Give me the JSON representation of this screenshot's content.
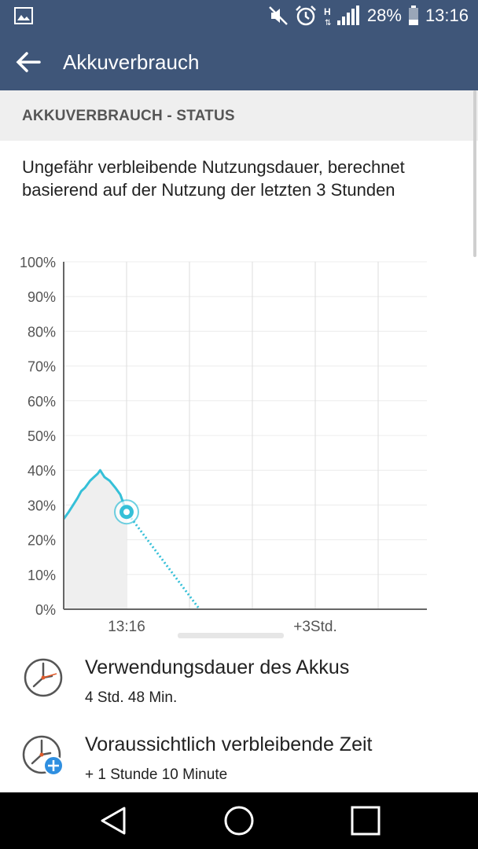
{
  "status_bar": {
    "battery_percent": "28%",
    "time": "13:16"
  },
  "app_bar": {
    "title": "Akkuverbrauch"
  },
  "section": {
    "header": "AKKUVERBRAUCH - STATUS"
  },
  "description": "Ungefähr verbleibende Nutzungsdauer, berechnet basierend auf der Nutzung der letzten 3 Stunden",
  "chart_data": {
    "type": "line",
    "y_ticks": [
      "100%",
      "90%",
      "80%",
      "70%",
      "60%",
      "50%",
      "40%",
      "30%",
      "20%",
      "10%",
      "0%"
    ],
    "x_labels": [
      "13:16",
      "+3Std."
    ],
    "ylim": [
      0,
      100
    ],
    "grid": true,
    "series": [
      {
        "x": [
          -1.0,
          -0.92,
          -0.85,
          -0.78,
          -0.72,
          -0.66,
          -0.58,
          -0.52,
          -0.46,
          -0.42,
          -0.35,
          -0.27,
          -0.18,
          -0.1,
          -0.04,
          0.0
        ],
        "values": [
          26,
          28,
          30,
          32,
          34,
          35,
          37,
          38,
          39,
          40,
          38,
          37,
          35,
          33,
          30,
          28
        ]
      }
    ],
    "projection": {
      "x": [
        0.0,
        1.16
      ],
      "values": [
        28,
        0
      ]
    },
    "current_point": {
      "x": 0.0,
      "value": 28
    }
  },
  "info_rows": [
    {
      "title": "Verwendungsdauer des Akkus",
      "value": "4 Std. 48 Min.",
      "icon": "clock-icon"
    },
    {
      "title": "Voraussichtlich verbleibende Zeit",
      "value": "+ 1 Stunde 10 Minute",
      "icon": "clock-plus-icon"
    }
  ],
  "colors": {
    "bar": "#3f5679",
    "line": "#35c0d8",
    "accent": "#2f8fe0"
  }
}
